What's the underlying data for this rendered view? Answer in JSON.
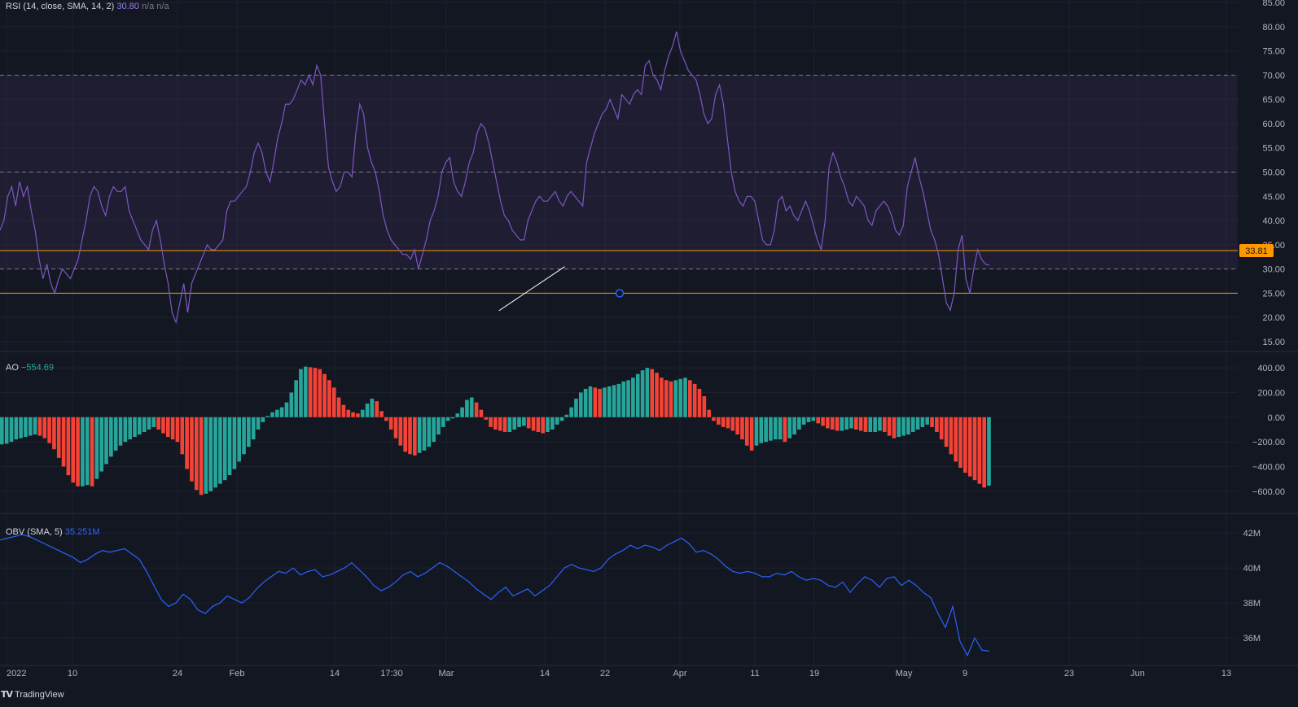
{
  "colors": {
    "background": "#131722",
    "grid": "#1e222d",
    "rsi_line": "#7e57c2",
    "rsi_band": "#7e57c2",
    "level_orange": "#ff9800",
    "ao_up": "#26a69a",
    "ao_down": "#f44336",
    "obv_line": "#2962ff",
    "trendline": "#ffffff",
    "axis_text": "#b2b5be"
  },
  "brand": {
    "name": "TradingView",
    "logo_icon": "tradingview-logo-icon"
  },
  "rsi_panel": {
    "title": "RSI (14, close, SMA, 14, 2)",
    "value": "30.80",
    "na_1": "n/a",
    "na_2": "n/a",
    "price_tag": "33.81"
  },
  "ao_panel": {
    "title": "AO",
    "value": "−554.69"
  },
  "obv_panel": {
    "title": "OBV (SMA, 5)",
    "value": "35.251M"
  },
  "chart_data": [
    {
      "type": "line",
      "name": "RSI",
      "ylim": [
        15,
        85
      ],
      "y_ticks": [
        "85.00",
        "80.00",
        "75.00",
        "70.00",
        "65.00",
        "60.00",
        "55.00",
        "50.00",
        "45.00",
        "40.00",
        "35.00",
        "30.00",
        "25.00",
        "20.00",
        "15.00"
      ],
      "band": [
        30,
        70
      ],
      "middle_line": 50,
      "horizontal_levels": [
        33.81,
        25
      ],
      "trendline": [
        [
          128,
          21.4
        ],
        [
          134,
          30.5
        ]
      ],
      "marker_at": [
        83,
        25
      ],
      "values": [
        38,
        40,
        45,
        47,
        43,
        48,
        45,
        47,
        42,
        38,
        32,
        28,
        31,
        27,
        25,
        28,
        30,
        29,
        28,
        30,
        32,
        36,
        40,
        45,
        47,
        46,
        43,
        41,
        45,
        47,
        46,
        46,
        47,
        42,
        40,
        38,
        36,
        35,
        34,
        38,
        40,
        36,
        31,
        27,
        21,
        19,
        23,
        27,
        21,
        27,
        29,
        31,
        33,
        35,
        34,
        34,
        35,
        36,
        42,
        44,
        44,
        45,
        46,
        47,
        50,
        54,
        56,
        54,
        50,
        48,
        52,
        57,
        60,
        64,
        64,
        65,
        67,
        69,
        68,
        70,
        68,
        72,
        70,
        60,
        51,
        48,
        46,
        47,
        50,
        50,
        49,
        58,
        64,
        62,
        55,
        52,
        50,
        46,
        41,
        38,
        36,
        35,
        34,
        33,
        33,
        32,
        34,
        30,
        33,
        36,
        40,
        42,
        45,
        50,
        52,
        53,
        48,
        46,
        45,
        48,
        52,
        54,
        58,
        60,
        59,
        56,
        52,
        48,
        44,
        41,
        40,
        38,
        37,
        36,
        36,
        40,
        42,
        44,
        45,
        44,
        44,
        45,
        46,
        44,
        43,
        45,
        46,
        45,
        44,
        43,
        52,
        55,
        58,
        60,
        62,
        63,
        65,
        63,
        61,
        66,
        65,
        64,
        66,
        67,
        66,
        72,
        73,
        70,
        69,
        67,
        71,
        74,
        76,
        79,
        75,
        73,
        71,
        70,
        69,
        66,
        62,
        60,
        61,
        66,
        68,
        64,
        57,
        50,
        46,
        44,
        43,
        45,
        45,
        44,
        40,
        36,
        35,
        35,
        38,
        44,
        45,
        42,
        43,
        41,
        40,
        42,
        44,
        42,
        39,
        36,
        34,
        40,
        51,
        54,
        52,
        49,
        47,
        44,
        43,
        45,
        44,
        43,
        40,
        39,
        42,
        43,
        44,
        43,
        41,
        38,
        37,
        39,
        47,
        50,
        53,
        49,
        46,
        42,
        38,
        36,
        33,
        28,
        23,
        21.5,
        25,
        34,
        37,
        28,
        25,
        30,
        34,
        32,
        31,
        30.8
      ]
    },
    {
      "type": "bar",
      "name": "AO",
      "ylim": [
        -720,
        480
      ],
      "y_ticks": [
        "400.00",
        "200.00",
        "0.00",
        "−200.00",
        "−400.00",
        "−600.00"
      ],
      "values": [
        -220,
        -215,
        -200,
        -180,
        -170,
        -160,
        -150,
        -140,
        -150,
        -170,
        -210,
        -260,
        -330,
        -400,
        -470,
        -530,
        -560,
        -560,
        -550,
        -560,
        -500,
        -440,
        -380,
        -320,
        -270,
        -230,
        -200,
        -180,
        -160,
        -140,
        -120,
        -100,
        -80,
        -100,
        -130,
        -160,
        -180,
        -200,
        -300,
        -420,
        -520,
        -590,
        -630,
        -620,
        -600,
        -570,
        -540,
        -510,
        -470,
        -420,
        -360,
        -300,
        -240,
        -180,
        -100,
        -40,
        10,
        40,
        60,
        80,
        120,
        200,
        300,
        390,
        410,
        405,
        400,
        390,
        350,
        300,
        240,
        160,
        100,
        60,
        40,
        30,
        60,
        110,
        150,
        130,
        50,
        -30,
        -100,
        -170,
        -230,
        -280,
        -300,
        -310,
        -290,
        -270,
        -240,
        -200,
        -140,
        -80,
        -30,
        -10,
        30,
        80,
        140,
        160,
        120,
        60,
        -20,
        -80,
        -100,
        -110,
        -120,
        -120,
        -100,
        -80,
        -70,
        -90,
        -110,
        -120,
        -130,
        -120,
        -100,
        -60,
        -30,
        20,
        80,
        150,
        200,
        230,
        250,
        240,
        230,
        240,
        250,
        260,
        270,
        290,
        300,
        320,
        350,
        380,
        400,
        390,
        360,
        320,
        300,
        290,
        300,
        310,
        320,
        300,
        270,
        230,
        170,
        60,
        -30,
        -60,
        -80,
        -90,
        -110,
        -140,
        -180,
        -230,
        -270,
        -230,
        -210,
        -200,
        -190,
        -180,
        -180,
        -200,
        -170,
        -140,
        -100,
        -60,
        -40,
        -30,
        -50,
        -70,
        -90,
        -100,
        -110,
        -110,
        -100,
        -90,
        -100,
        -110,
        -120,
        -120,
        -120,
        -110,
        -120,
        -150,
        -170,
        -160,
        -150,
        -140,
        -120,
        -100,
        -80,
        -60,
        -80,
        -120,
        -180,
        -240,
        -300,
        -360,
        -410,
        -450,
        -480,
        -510,
        -540,
        -570,
        -554.69
      ]
    },
    {
      "type": "line",
      "name": "OBV",
      "ylim": [
        34.8,
        42.7
      ],
      "y_ticks": [
        "42M",
        "40M",
        "38M",
        "36M"
      ],
      "values": [
        41.6,
        41.7,
        41.8,
        41.9,
        41.8,
        41.6,
        41.4,
        41.2,
        41.0,
        40.8,
        40.6,
        40.3,
        40.5,
        40.8,
        41.0,
        40.9,
        41.0,
        41.1,
        40.8,
        40.5,
        39.8,
        39.0,
        38.2,
        37.8,
        38.0,
        38.5,
        38.2,
        37.6,
        37.4,
        37.8,
        38.0,
        38.4,
        38.2,
        38.0,
        38.3,
        38.8,
        39.2,
        39.5,
        39.8,
        39.7,
        40.0,
        39.6,
        39.8,
        39.9,
        39.5,
        39.6,
        39.8,
        40.0,
        40.3,
        39.9,
        39.5,
        39.0,
        38.7,
        38.9,
        39.2,
        39.6,
        39.8,
        39.5,
        39.7,
        40.0,
        40.3,
        40.1,
        39.8,
        39.5,
        39.2,
        38.8,
        38.5,
        38.2,
        38.6,
        38.9,
        38.4,
        38.6,
        38.8,
        38.4,
        38.7,
        39.0,
        39.5,
        40.0,
        40.2,
        40.0,
        39.9,
        39.8,
        40.0,
        40.5,
        40.8,
        41.0,
        41.3,
        41.1,
        41.3,
        41.2,
        41.0,
        41.3,
        41.5,
        41.7,
        41.4,
        40.9,
        41.0,
        40.8,
        40.5,
        40.1,
        39.8,
        39.7,
        39.8,
        39.7,
        39.5,
        39.5,
        39.7,
        39.6,
        39.8,
        39.5,
        39.3,
        39.4,
        39.3,
        39.0,
        38.9,
        39.2,
        38.6,
        39.1,
        39.5,
        39.3,
        38.9,
        39.4,
        39.5,
        39.0,
        39.3,
        39.0,
        38.6,
        38.3,
        37.4,
        36.6,
        37.8,
        35.8,
        35.0,
        36.0,
        35.3,
        35.251
      ]
    }
  ],
  "x_axis_labels": [
    "2022",
    "10",
    "24",
    "Feb",
    "14",
    "17:30",
    "Mar",
    "14",
    "22",
    "Apr",
    "11",
    "19",
    "May",
    "9",
    "23",
    "Jun",
    "13"
  ]
}
